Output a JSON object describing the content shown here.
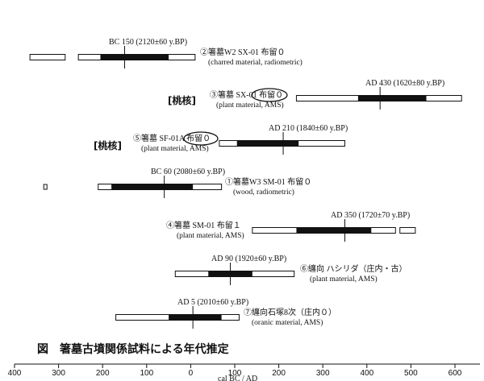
{
  "chart_data": {
    "type": "range",
    "axis": {
      "min": -400,
      "max": 600,
      "ticks": [
        -400,
        -300,
        -200,
        -100,
        0,
        100,
        200,
        300,
        400,
        500,
        600
      ],
      "tick_labels": [
        "400",
        "300",
        "200",
        "100",
        "0",
        "100",
        "200",
        "300",
        "400",
        "500",
        "600"
      ],
      "label": "cal BC / AD"
    },
    "samples": [
      {
        "date_label": "BC 150 (2120±60 y.BP)",
        "name": "②箸墓W2 SX-01 布留０",
        "material": "(charred material, radiometric)",
        "marker": -150,
        "ranges_1sigma": [
          [
            -205,
            -50
          ]
        ],
        "ranges_2sigma": [
          [
            -365,
            -285
          ],
          [
            -255,
            10
          ]
        ],
        "prefix": ""
      },
      {
        "date_label": "AD 430 (1620±80 y.BP)",
        "name": "③箸墓 SX-01 布留０",
        "material": "(plant material, AMS)",
        "marker": 430,
        "ranges_1sigma": [
          [
            380,
            535
          ]
        ],
        "ranges_2sigma": [
          [
            240,
            615
          ]
        ],
        "prefix": "[桃核]"
      },
      {
        "date_label": "AD 210 (1840±60 y.BP)",
        "name": "⑤箸墓 SF-01A 布留０",
        "material": "(plant material, AMS)",
        "marker": 210,
        "ranges_1sigma": [
          [
            105,
            245
          ]
        ],
        "ranges_2sigma": [
          [
            65,
            350
          ]
        ],
        "prefix": "[桃核]"
      },
      {
        "date_label": "BC 60 (2080±60 y.BP)",
        "name": "①箸墓W3 SM-01 布留０",
        "material": "(wood, radiometric)",
        "marker": -60,
        "ranges_1sigma": [
          [
            -180,
            5
          ]
        ],
        "ranges_2sigma": [
          [
            -210,
            70
          ]
        ],
        "prefix": ""
      },
      {
        "date_label": "AD 350 (1720±70 y.BP)",
        "name": "④箸墓 SM-01 布留１",
        "material": "(plant material, AMS)",
        "marker": 350,
        "ranges_1sigma": [
          [
            240,
            410
          ]
        ],
        "ranges_2sigma": [
          [
            140,
            465
          ],
          [
            475,
            510
          ]
        ],
        "prefix": ""
      },
      {
        "date_label": "AD 90 (1920±60 y.BP)",
        "name": "⑥纏向 ハシリダ（庄内・古）",
        "material": "(plant material, AMS)",
        "marker": 90,
        "ranges_1sigma": [
          [
            40,
            140
          ]
        ],
        "ranges_2sigma": [
          [
            -35,
            235
          ]
        ],
        "prefix": ""
      },
      {
        "date_label": "AD 5 (2010±60 y.BP)",
        "name": "⑦纏向石塚8次（庄内０）",
        "material": "(oranic material, AMS)",
        "marker": 5,
        "ranges_1sigma": [
          [
            -50,
            70
          ]
        ],
        "ranges_2sigma": [
          [
            -170,
            110
          ]
        ],
        "prefix": ""
      }
    ],
    "caption": "図　箸墓古墳関係試料による年代推定",
    "stray_marker_value": -330
  }
}
